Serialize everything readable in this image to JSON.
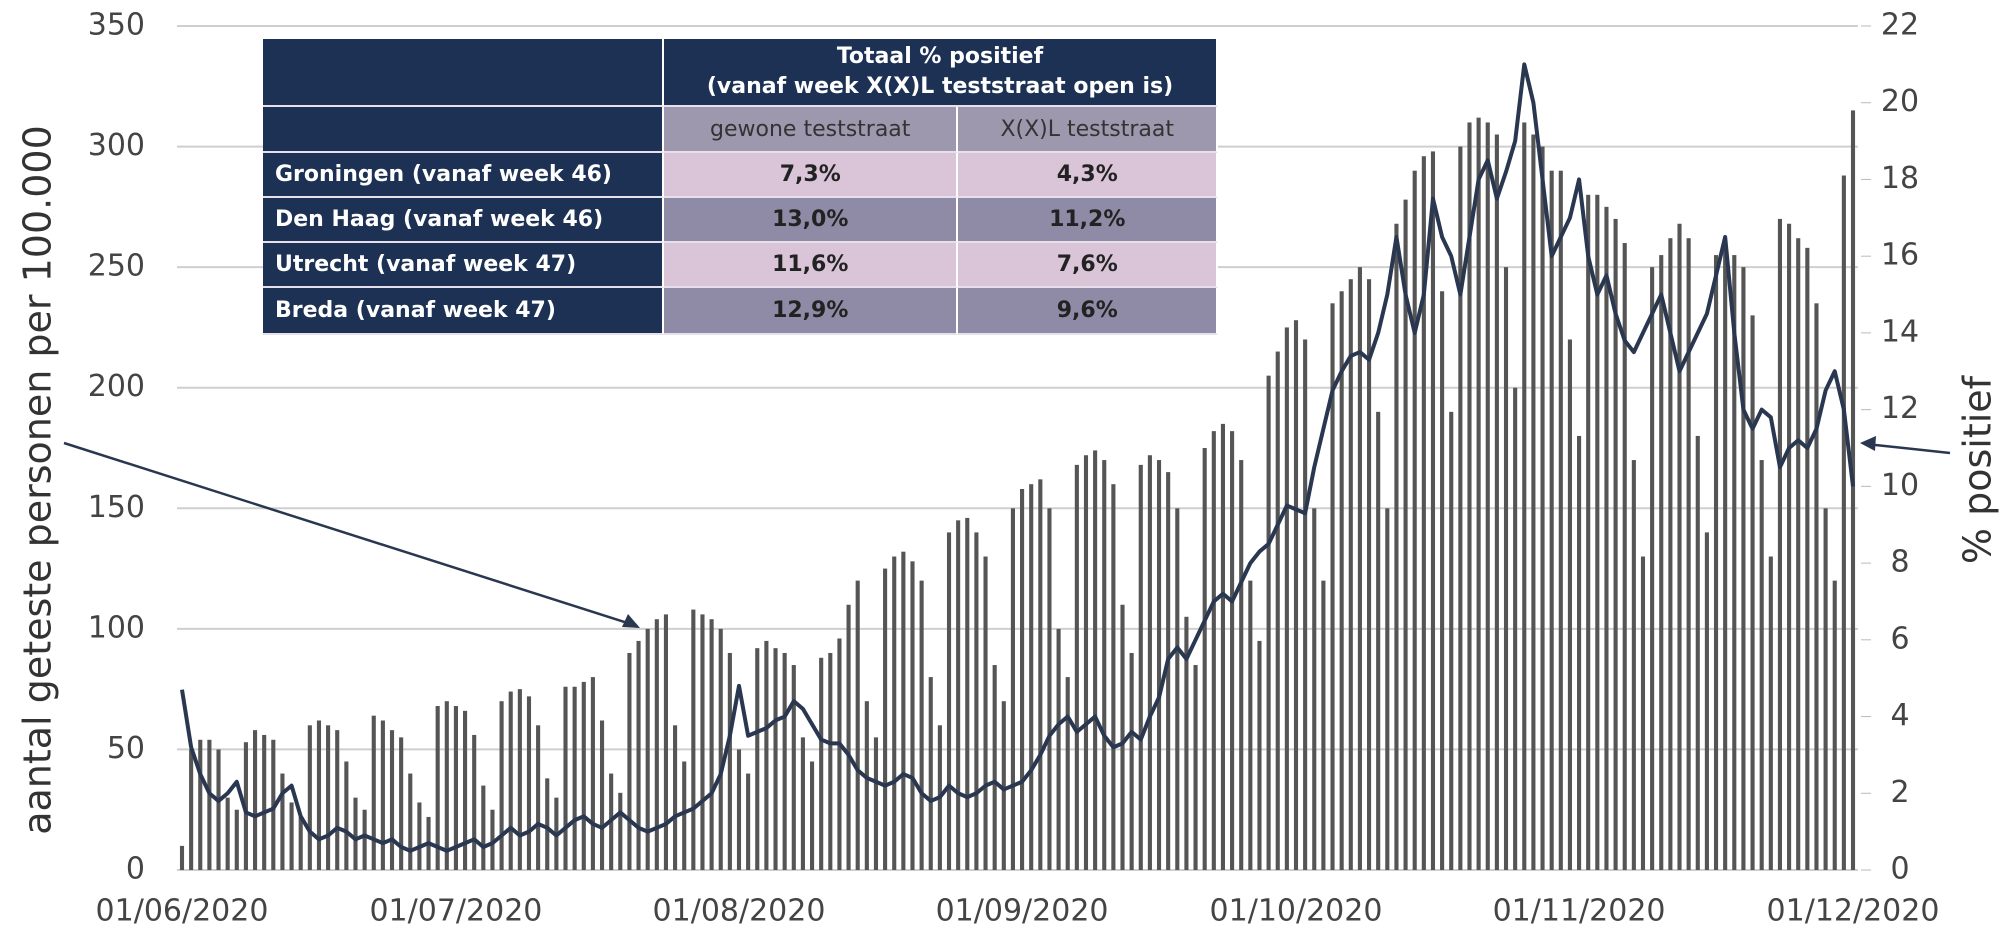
{
  "chart_data": {
    "type": "bar",
    "y_label": "aantal geteste personen per 100.000",
    "y2_label": "% positief",
    "categories": [
      "01/06/2020",
      null,
      null,
      null,
      null,
      null,
      null,
      null,
      null,
      null,
      null,
      null,
      null,
      null,
      null,
      null,
      null,
      null,
      null,
      null,
      null,
      null,
      null,
      null,
      null,
      null,
      null,
      null,
      null,
      null,
      "01/07/2020",
      null,
      null,
      null,
      null,
      null,
      null,
      null,
      null,
      null,
      null,
      null,
      null,
      null,
      null,
      null,
      null,
      null,
      null,
      null,
      null,
      null,
      null,
      null,
      null,
      null,
      null,
      null,
      null,
      null,
      null,
      "01/08/2020",
      null,
      null,
      null,
      null,
      null,
      null,
      null,
      null,
      null,
      null,
      null,
      null,
      null,
      null,
      null,
      null,
      null,
      null,
      null,
      null,
      null,
      null,
      null,
      null,
      null,
      null,
      null,
      null,
      null,
      null,
      "01/09/2020",
      null,
      null,
      null,
      null,
      null,
      null,
      null,
      null,
      null,
      null,
      null,
      null,
      null,
      null,
      null,
      null,
      null,
      null,
      null,
      null,
      null,
      null,
      null,
      null,
      null,
      null,
      null,
      null,
      null,
      "01/10/2020",
      null,
      null,
      null,
      null,
      null,
      null,
      null,
      null,
      null,
      null,
      null,
      null,
      null,
      null,
      null,
      null,
      null,
      null,
      null,
      null,
      null,
      null,
      null,
      null,
      null,
      null,
      null,
      null,
      null,
      null,
      "01/11/2020",
      null,
      null,
      null,
      null,
      null,
      null,
      null,
      null,
      null,
      null,
      null,
      null,
      null,
      null,
      null,
      null,
      null,
      null,
      null,
      null,
      null,
      null,
      null,
      null,
      null,
      null,
      null,
      null,
      null,
      "01/12/2020"
    ],
    "series": [
      {
        "type": "bar",
        "color": "#555555",
        "values": [
          10,
          50,
          54,
          54,
          50,
          30,
          25,
          53,
          58,
          56,
          54,
          40,
          28,
          22,
          60,
          62,
          60,
          58,
          45,
          30,
          25,
          64,
          62,
          58,
          55,
          40,
          28,
          22,
          68,
          70,
          68,
          66,
          56,
          35,
          25,
          70,
          74,
          75,
          72,
          60,
          38,
          30,
          76,
          76,
          78,
          80,
          62,
          40,
          32,
          90,
          95,
          100,
          104,
          106,
          60,
          45,
          108,
          106,
          104,
          100,
          90,
          50,
          40,
          92,
          95,
          92,
          90,
          85,
          55,
          45,
          88,
          90,
          96,
          110,
          120,
          70,
          55,
          125,
          130,
          132,
          128,
          120,
          80,
          60,
          140,
          145,
          146,
          140,
          130,
          85,
          70,
          150,
          158,
          160,
          162,
          150,
          100,
          80,
          168,
          172,
          174,
          170,
          160,
          110,
          90,
          168,
          172,
          170,
          165,
          150,
          105,
          85,
          175,
          182,
          185,
          182,
          170,
          120,
          95,
          205,
          215,
          225,
          228,
          220,
          150,
          120,
          235,
          240,
          245,
          250,
          245,
          190,
          150,
          268,
          278,
          290,
          296,
          298,
          240,
          190,
          300,
          310,
          312,
          310,
          305,
          250,
          200,
          310,
          305,
          300,
          290,
          290,
          220,
          180,
          280,
          280,
          275,
          270,
          260,
          170,
          130,
          250,
          255,
          262,
          268,
          262,
          180,
          140,
          255,
          258,
          255,
          250,
          230,
          170,
          130,
          270,
          268,
          262,
          258,
          235,
          150,
          120,
          288,
          315
        ]
      },
      {
        "type": "line",
        "axis": "y2",
        "color": "#2a3750",
        "values": [
          4.7,
          3.2,
          2.5,
          2.0,
          1.8,
          2.0,
          2.3,
          1.5,
          1.4,
          1.5,
          1.6,
          2.0,
          2.2,
          1.4,
          1.0,
          0.8,
          0.9,
          1.1,
          1.0,
          0.8,
          0.9,
          0.8,
          0.7,
          0.8,
          0.6,
          0.5,
          0.6,
          0.7,
          0.6,
          0.5,
          0.6,
          0.7,
          0.8,
          0.6,
          0.7,
          0.9,
          1.1,
          0.9,
          1.0,
          1.2,
          1.1,
          0.9,
          1.1,
          1.3,
          1.4,
          1.2,
          1.1,
          1.3,
          1.5,
          1.3,
          1.1,
          1.0,
          1.1,
          1.2,
          1.4,
          1.5,
          1.6,
          1.8,
          2.0,
          2.5,
          3.5,
          4.8,
          3.5,
          3.6,
          3.7,
          3.9,
          4.0,
          4.4,
          4.2,
          3.8,
          3.4,
          3.3,
          3.3,
          3.0,
          2.6,
          2.4,
          2.3,
          2.2,
          2.3,
          2.5,
          2.4,
          2.0,
          1.8,
          1.9,
          2.2,
          2.0,
          1.9,
          2.0,
          2.2,
          2.3,
          2.1,
          2.2,
          2.3,
          2.6,
          3.0,
          3.5,
          3.8,
          4.0,
          3.6,
          3.8,
          4.0,
          3.5,
          3.2,
          3.3,
          3.6,
          3.4,
          4.0,
          4.5,
          5.5,
          5.8,
          5.5,
          6.0,
          6.5,
          7.0,
          7.2,
          7.0,
          7.5,
          8.0,
          8.3,
          8.5,
          9.0,
          9.5,
          9.4,
          9.3,
          10.5,
          11.5,
          12.5,
          13.0,
          13.4,
          13.5,
          13.3,
          14.0,
          15.0,
          16.5,
          15.0,
          14.0,
          15.0,
          17.5,
          16.5,
          16.0,
          15.0,
          16.5,
          18.0,
          18.5,
          17.5,
          18.2,
          19.0,
          21.0,
          20.0,
          18.0,
          16.0,
          16.5,
          17.0,
          18.0,
          16.0,
          15.0,
          15.5,
          14.5,
          13.8,
          13.5,
          14.0,
          14.5,
          15.0,
          14.0,
          13.0,
          13.5,
          14.0,
          14.5,
          15.5,
          16.5,
          14.0,
          12.0,
          11.5,
          12.0,
          11.8,
          10.5,
          11.0,
          11.2,
          11.0,
          11.5,
          12.5,
          13.0,
          12.0,
          10.0
        ]
      }
    ],
    "ylim": [
      0,
      350
    ],
    "yticks": [
      0,
      50,
      100,
      150,
      200,
      250,
      300,
      350
    ],
    "y2lim": [
      0,
      22
    ],
    "y2ticks": [
      0,
      2,
      4,
      6,
      8,
      10,
      12,
      14,
      16,
      18,
      20,
      22
    ],
    "grid": true
  },
  "table": {
    "header": "Totaal % positief\n(vanaf week X(X)L teststraat open is)",
    "columns": [
      "gewone teststraat",
      "X(X)L teststraat"
    ],
    "rows": [
      [
        "Groningen (vanaf week 46)",
        "7,3%",
        "4,3%"
      ],
      [
        "Den Haag (vanaf week 46)",
        "13,0%",
        "11,2%"
      ],
      [
        "Utrecht (vanaf week 47)",
        "11,6%",
        "7,6%"
      ],
      [
        "Breda (vanaf week 47)",
        "12,9%",
        "9,6%"
      ]
    ]
  }
}
